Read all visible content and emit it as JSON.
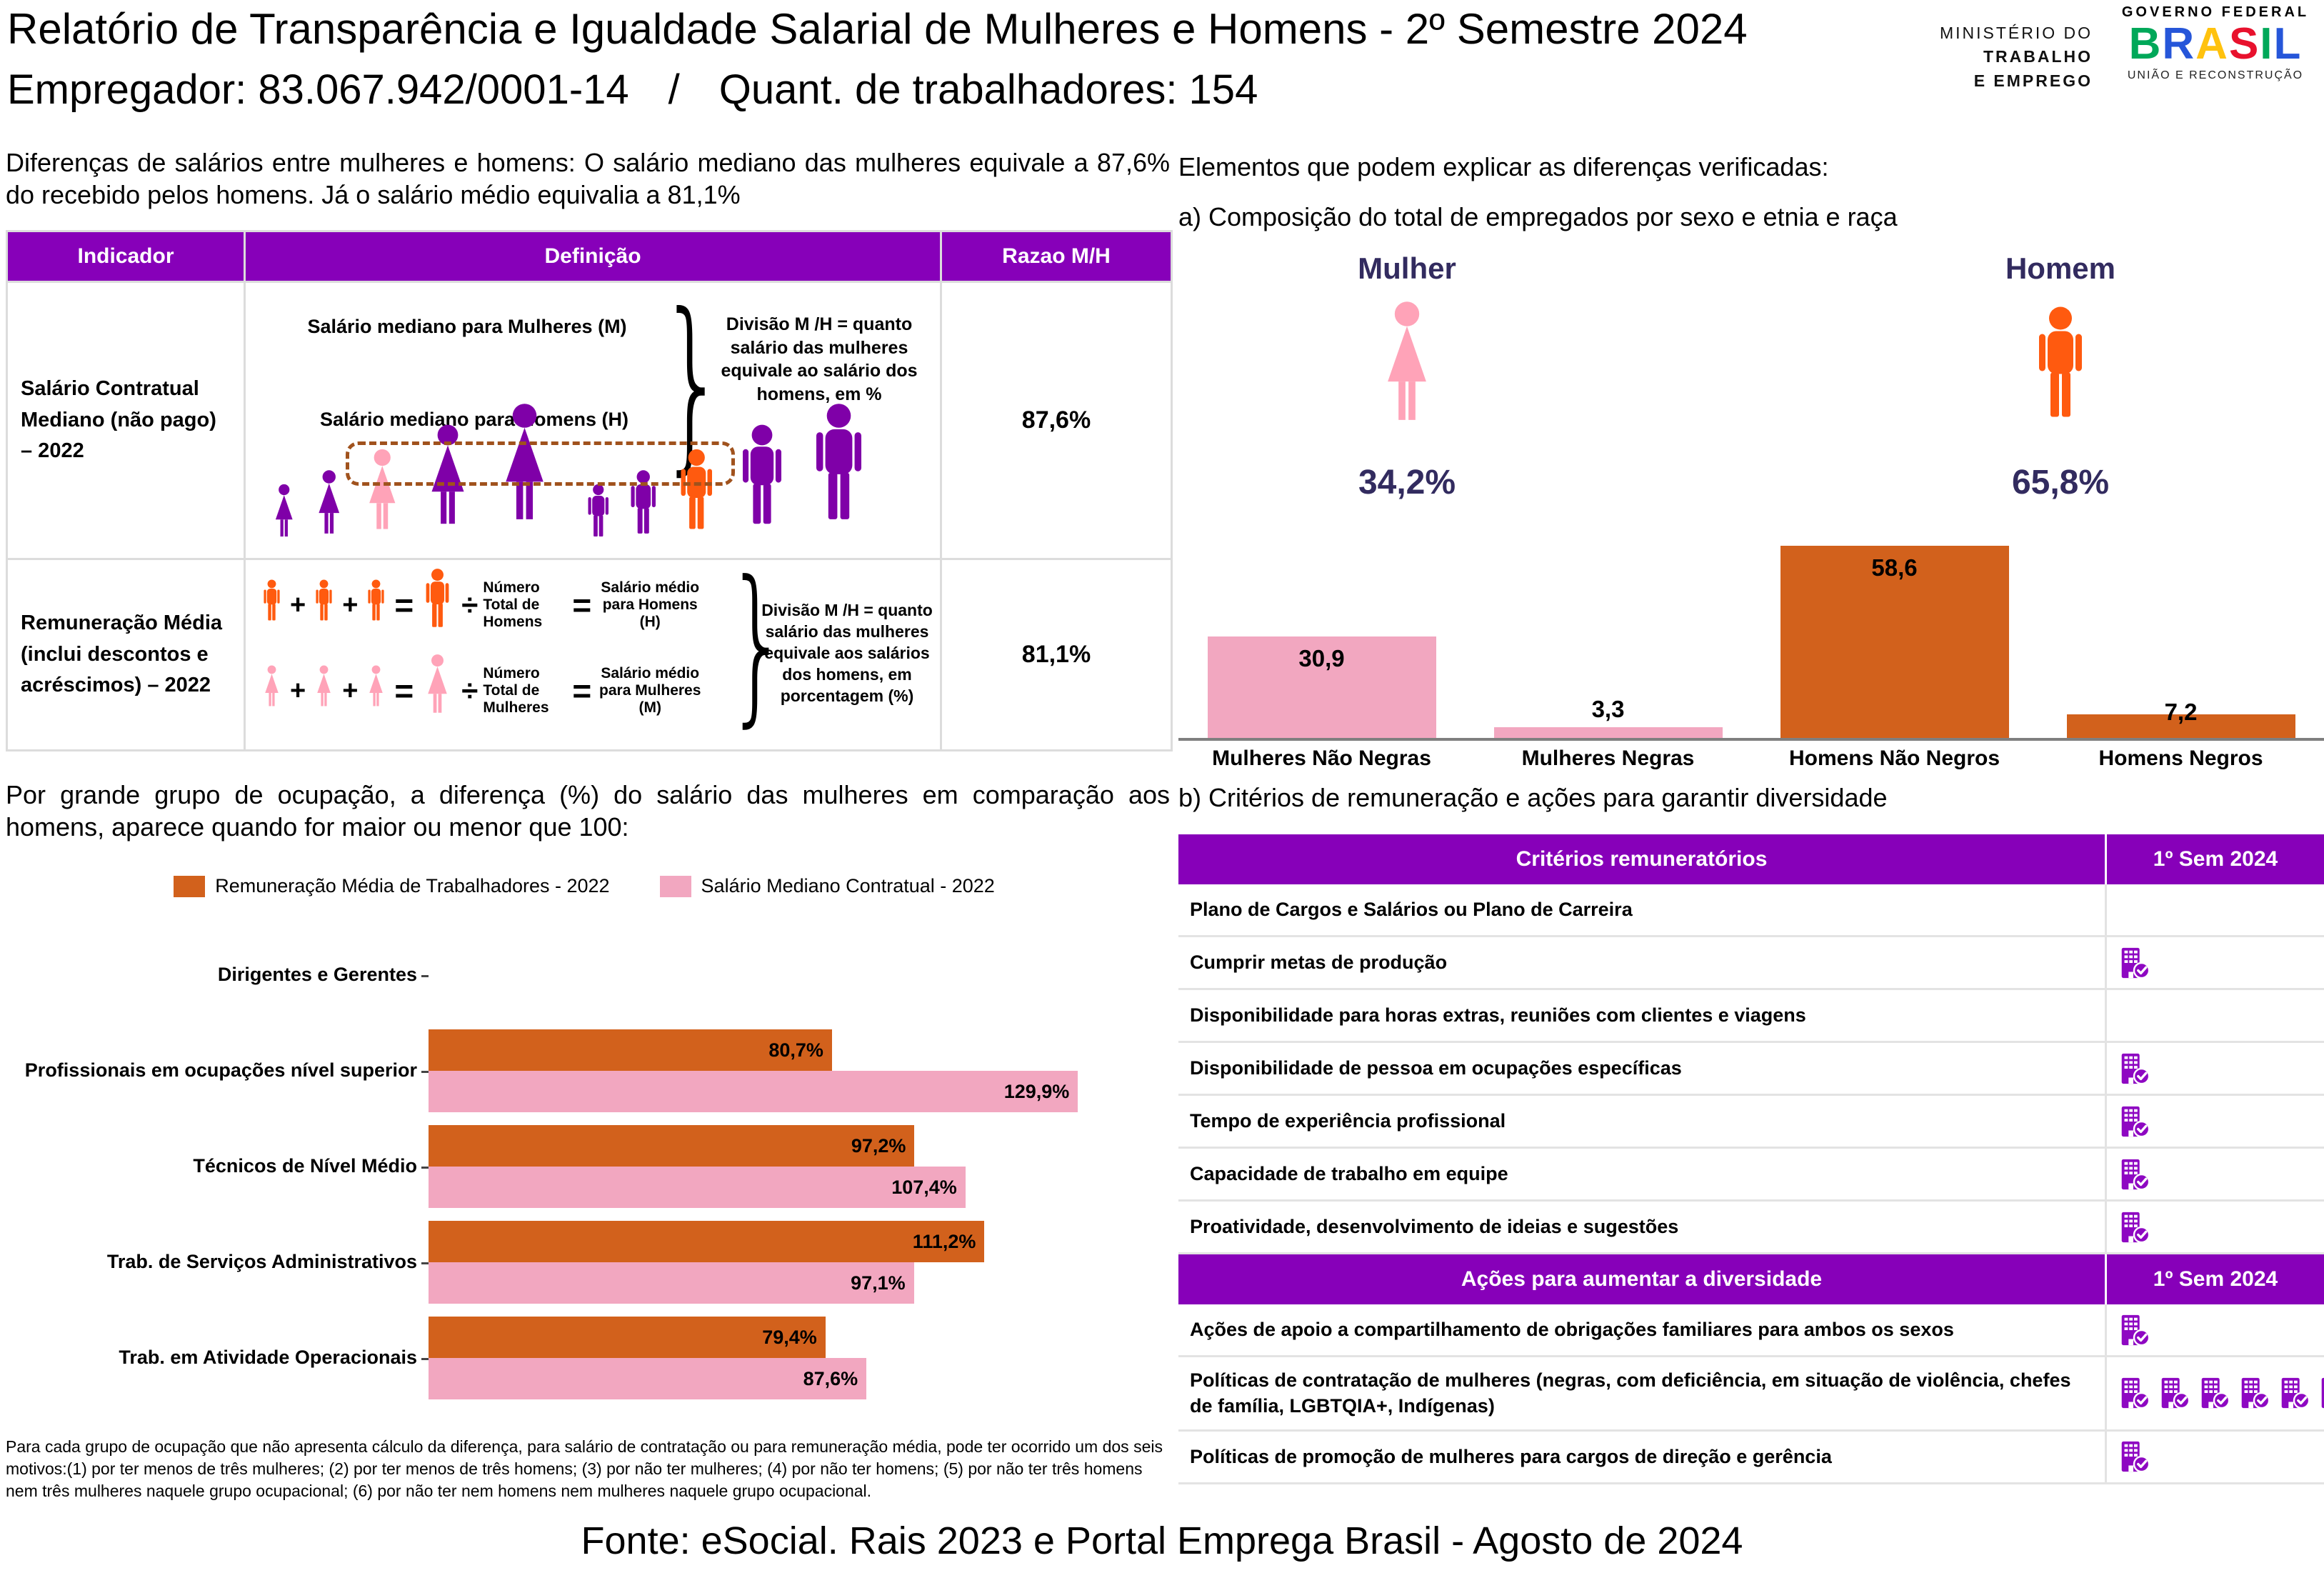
{
  "colors": {
    "purple_header": "#8700B9",
    "purple_icon": "#8E08C2",
    "figure_purple": "#7F00A8",
    "orange_bar": "#D2611C",
    "pink_bar": "#F2A7C0",
    "orange_icon": "#FF5A0F",
    "pink_icon": "#FFA3B8",
    "navy": "#322B5F",
    "dash_box": "#A0521D"
  },
  "symbols": {
    "brace": "}",
    "plus": "+",
    "equals": "=",
    "divide": "÷"
  },
  "header": {
    "title": "Relatório de Transparência e Igualdade Salarial de Mulheres e Homens - 2º Semestre 2024",
    "employer": "Empregador: 83.067.942/0001-14",
    "separator": "/",
    "workers": "Quant. de trabalhadores: 154",
    "ministry_line1": "MINISTÉRIO DO",
    "ministry_line2": "TRABALHO",
    "ministry_line3": "E EMPREGO",
    "gov_top": "GOVERNO FEDERAL",
    "gov_brand": "BRASIL",
    "gov_brand_colors": [
      "#00A859",
      "#2656D9",
      "#FFC20E",
      "#E8112D",
      "#00A859",
      "#2656D9"
    ],
    "gov_bottom": "UNIÃO E RECONSTRUÇÃO"
  },
  "left": {
    "intro": "Diferenças de salários entre mulheres e homens: O salário mediano das mulheres equivale a 87,6% do recebido pelos homens. Já o salário médio equivalia a 81,1%",
    "table": {
      "col_indicator": "Indicador",
      "col_definition": "Definição",
      "col_ratio": "Razao M/H",
      "row1": {
        "indicator": "Salário Contratual Mediano (não pago) – 2022",
        "label_women": "Salário mediano para Mulheres (M)",
        "label_men": "Salário mediano para Homens (H)",
        "note": "Divisão M /H = quanto salário das mulheres equivale ao salário dos homens, em %",
        "ratio": "87,6%",
        "figures": {
          "sizes": [
            95,
            115,
            145,
            180,
            210
          ],
          "women_colors": [
            "purple",
            "purple",
            "pink",
            "purple",
            "purple"
          ],
          "men_colors": [
            "purple",
            "purple",
            "orange",
            "purple",
            "purple"
          ]
        }
      },
      "row2": {
        "indicator": "Remuneração Média (inclui descontos e acréscimos) – 2022",
        "men_divisor": "Número Total de Homens",
        "men_result": "Salário médio para Homens (H)",
        "women_divisor": "Número Total de Mulheres",
        "women_result": "Salário médio para Mulheres (M)",
        "note": "Divisão M /H = quanto salário das mulheres equivale aos salários dos homens, em porcentagem (%)",
        "ratio": "81,1%"
      }
    },
    "occupation_intro": "Por grande grupo de ocupação, a diferença (%) do salário das mulheres em comparação aos homens, aparece quando for maior ou menor que 100:",
    "footnote": "Para cada grupo de ocupação que não apresenta cálculo da diferença, para salário de contratação ou para remuneração média, pode ter ocorrido um dos seis motivos:(1) por ter menos de três mulheres; (2) por ter menos de três homens; (3) por não ter mulheres; (4) por não ter homens; (5) por não ter três homens nem três mulheres naquele grupo ocupacional; (6) por não ter nem homens nem mulheres naquele grupo ocupacional."
  },
  "right": {
    "heading": "Elementos que podem explicar as diferenças verificadas:",
    "section_a": "a) Composição do total de empregados por sexo e etnia e raça",
    "female_label": "Mulher",
    "male_label": "Homem",
    "female_pct": "34,2%",
    "male_pct": "65,8%",
    "section_b": "b) Critérios de remuneração e ações para garantir diversidade",
    "criteria_table": {
      "header_label": "Critérios remuneratórios",
      "header_period": "1º Sem 2024",
      "rows": [
        {
          "label": "Plano de Cargos e Salários ou Plano de Carreira",
          "checks": 0
        },
        {
          "label": "Cumprir metas de produção",
          "checks": 1
        },
        {
          "label": "Disponibilidade para horas extras, reuniões com clientes e viagens",
          "checks": 0
        },
        {
          "label": "Disponibilidade de pessoa em ocupações específicas",
          "checks": 1
        },
        {
          "label": "Tempo de experiência profissional",
          "checks": 1
        },
        {
          "label": "Capacidade de trabalho em equipe",
          "checks": 1
        },
        {
          "label": "Proatividade, desenvolvimento de ideias e sugestões",
          "checks": 1
        }
      ],
      "header2_label": "Ações para aumentar a diversidade",
      "header2_period": "1º Sem 2024",
      "rows2": [
        {
          "label": "Ações de apoio a compartilhamento de obrigações familiares para ambos os sexos",
          "checks": 1
        },
        {
          "label": "Políticas de contratação de mulheres (negras, com deficiência, em situação de violência, chefes de família, LGBTQIA+, Indígenas)",
          "checks": 6
        },
        {
          "label": "Políticas de promoção de mulheres para cargos de direção e gerência",
          "checks": 1
        }
      ]
    }
  },
  "chart_data": [
    {
      "id": "occupation_gap",
      "type": "bar",
      "orientation": "horizontal",
      "title": "Por grande grupo de ocupação, diferença (%) do salário das mulheres em comparação aos homens",
      "categories": [
        "Dirigentes e Gerentes",
        "Profissionais em ocupações nível superior",
        "Técnicos de Nível Médio",
        "Trab. de Serviços Administrativos",
        "Trab. em Atividade Operacionais"
      ],
      "series": [
        {
          "name": "Remuneração Média de Trabalhadores - 2022",
          "color": "#D2611C",
          "values": [
            null,
            80.7,
            97.2,
            111.2,
            79.4
          ],
          "labels": [
            "",
            "80,7%",
            "97,2%",
            "111,2%",
            "79,4%"
          ]
        },
        {
          "name": "Salário Mediano Contratual - 2022",
          "color": "#F2A7C0",
          "values": [
            null,
            129.9,
            107.4,
            97.1,
            87.6
          ],
          "labels": [
            "",
            "129,9%",
            "107,4%",
            "97,1%",
            "87,6%"
          ]
        }
      ],
      "xlim": [
        0,
        135
      ],
      "legend_position": "top",
      "grid": false
    },
    {
      "id": "composition_sex_race",
      "type": "bar",
      "orientation": "vertical",
      "title": "a) Composição do total de empregados por sexo e etnia e raça",
      "categories": [
        "Mulheres Não Negras",
        "Mulheres Negras",
        "Homens Não Negros",
        "Homens Negros"
      ],
      "values": [
        30.9,
        3.3,
        58.6,
        7.2
      ],
      "labels": [
        "30,9",
        "3,3",
        "58,6",
        "7,2"
      ],
      "colors": [
        "#F2A7C0",
        "#F2A7C0",
        "#D2611C",
        "#D2611C"
      ],
      "ylim": [
        0,
        62
      ],
      "grid": false
    }
  ],
  "gender_split": {
    "female_pct": 34.2,
    "male_pct": 65.8
  },
  "footer": {
    "source": "Fonte: eSocial. Rais 2023 e Portal Emprega Brasil - Agosto de 2024"
  }
}
